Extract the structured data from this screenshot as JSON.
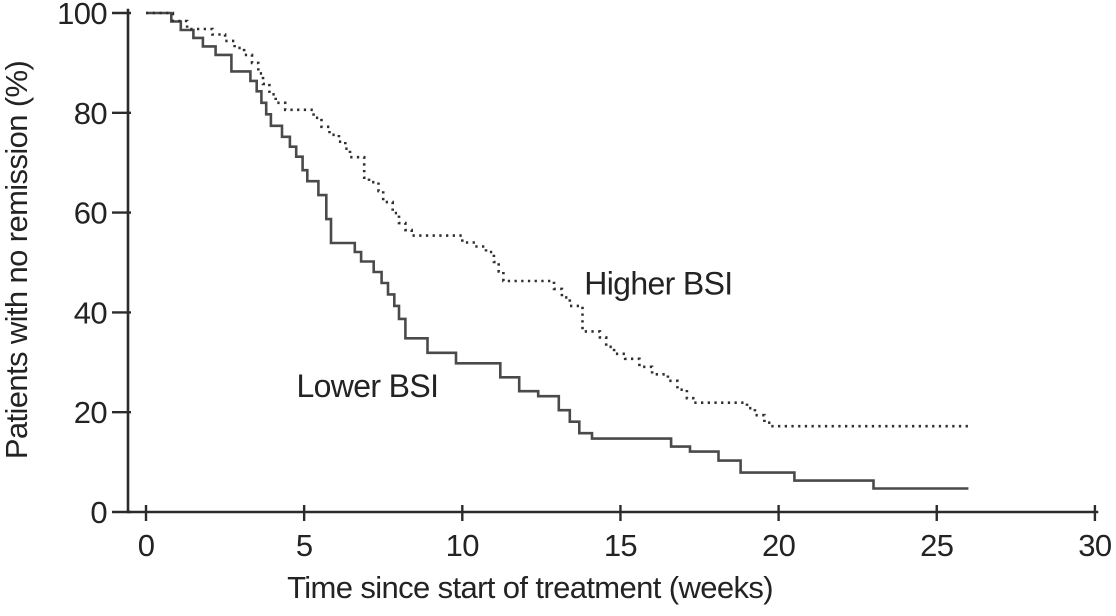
{
  "chart_data": {
    "type": "line",
    "subtype": "kaplan_meier_step",
    "title": "",
    "xlabel": "Time since start of treatment (weeks)",
    "ylabel": "Patients with no remission (%)",
    "xlim": [
      0,
      30
    ],
    "ylim": [
      0,
      100
    ],
    "xticks": [
      0,
      5,
      10,
      15,
      20,
      25,
      30
    ],
    "yticks": [
      0,
      20,
      40,
      60,
      80,
      100
    ],
    "grid": false,
    "background_color": "#ffffff",
    "axis_color": "#2b2b2b",
    "legend_position": "inline_annotations",
    "series": [
      {
        "name": "Lower BSI",
        "line_style": "solid",
        "color": "#4a4a4a",
        "label_anchor": {
          "x": 7.0,
          "y": 25.5
        },
        "end_x": 26,
        "steps": [
          [
            0,
            100
          ],
          [
            0.8,
            98.3
          ],
          [
            1.1,
            96.6
          ],
          [
            1.5,
            95.0
          ],
          [
            1.8,
            93.3
          ],
          [
            2.2,
            91.6
          ],
          [
            2.7,
            88.3
          ],
          [
            3.3,
            86.4
          ],
          [
            3.5,
            84.3
          ],
          [
            3.65,
            82.0
          ],
          [
            3.8,
            79.7
          ],
          [
            3.95,
            77.4
          ],
          [
            4.3,
            75.2
          ],
          [
            4.55,
            73.2
          ],
          [
            4.75,
            71.2
          ],
          [
            4.95,
            68.5
          ],
          [
            5.1,
            66.3
          ],
          [
            5.45,
            63.5
          ],
          [
            5.7,
            58.7
          ],
          [
            5.85,
            53.9
          ],
          [
            6.6,
            52.1
          ],
          [
            6.8,
            50.2
          ],
          [
            7.2,
            48.1
          ],
          [
            7.45,
            45.9
          ],
          [
            7.65,
            43.6
          ],
          [
            7.85,
            41.3
          ],
          [
            8.0,
            38.7
          ],
          [
            8.2,
            34.8
          ],
          [
            8.9,
            31.9
          ],
          [
            9.8,
            29.8
          ],
          [
            11.2,
            27.0
          ],
          [
            11.8,
            24.2
          ],
          [
            12.4,
            23.2
          ],
          [
            13.05,
            20.4
          ],
          [
            13.4,
            18.1
          ],
          [
            13.7,
            15.8
          ],
          [
            14.1,
            14.7
          ],
          [
            16.6,
            13.1
          ],
          [
            17.2,
            12.1
          ],
          [
            18.1,
            10.3
          ],
          [
            18.8,
            7.9
          ],
          [
            20.5,
            6.3
          ],
          [
            23.0,
            4.7
          ]
        ]
      },
      {
        "name": "Higher BSI",
        "line_style": "dotted",
        "color": "#2f2f2f",
        "label_anchor": {
          "x": 16.2,
          "y": 46.0
        },
        "end_x": 26,
        "steps": [
          [
            0,
            100
          ],
          [
            0.85,
            98.4
          ],
          [
            1.3,
            96.8
          ],
          [
            2.1,
            95.7
          ],
          [
            2.5,
            94.4
          ],
          [
            2.8,
            93.0
          ],
          [
            3.1,
            91.6
          ],
          [
            3.35,
            90.0
          ],
          [
            3.55,
            87.9
          ],
          [
            3.7,
            85.8
          ],
          [
            3.9,
            83.7
          ],
          [
            4.1,
            82.0
          ],
          [
            4.4,
            80.6
          ],
          [
            5.3,
            79.0
          ],
          [
            5.55,
            77.2
          ],
          [
            5.8,
            75.6
          ],
          [
            6.1,
            74.2
          ],
          [
            6.3,
            72.8
          ],
          [
            6.45,
            71.1
          ],
          [
            6.9,
            67.0
          ],
          [
            7.05,
            66.1
          ],
          [
            7.35,
            64.3
          ],
          [
            7.5,
            62.1
          ],
          [
            7.8,
            59.9
          ],
          [
            8.0,
            57.9
          ],
          [
            8.2,
            56.5
          ],
          [
            8.4,
            55.4
          ],
          [
            10.0,
            54.0
          ],
          [
            10.4,
            53.2
          ],
          [
            10.75,
            52.1
          ],
          [
            11.0,
            50.1
          ],
          [
            11.15,
            48.2
          ],
          [
            11.3,
            46.3
          ],
          [
            12.9,
            44.7
          ],
          [
            13.15,
            43.0
          ],
          [
            13.4,
            41.3
          ],
          [
            13.8,
            36.2
          ],
          [
            14.35,
            35.0
          ],
          [
            14.55,
            33.1
          ],
          [
            14.8,
            31.7
          ],
          [
            15.15,
            30.7
          ],
          [
            15.6,
            29.1
          ],
          [
            16.0,
            27.6
          ],
          [
            16.5,
            26.3
          ],
          [
            16.8,
            24.5
          ],
          [
            17.1,
            22.8
          ],
          [
            17.3,
            21.9
          ],
          [
            19.0,
            20.8
          ],
          [
            19.25,
            19.4
          ],
          [
            19.55,
            17.9
          ],
          [
            19.75,
            17.2
          ]
        ]
      }
    ]
  }
}
